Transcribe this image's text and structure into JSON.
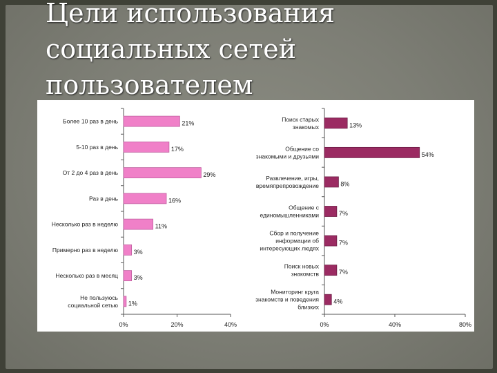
{
  "slide": {
    "title_lines": [
      "Цели использования",
      "социальных сетей",
      "пользователем"
    ]
  },
  "colors": {
    "left_bar": "#f080c8",
    "left_bar_stroke": "#c060a0",
    "right_bar": "#9b2b62",
    "right_bar_stroke": "#6e1e46",
    "axis": "#555555",
    "text": "#222222"
  },
  "chart_data": [
    {
      "type": "bar",
      "orientation": "horizontal",
      "categories": [
        "Более 10 раз в день",
        "5-10 раз в день",
        "От 2 до 4 раз в день",
        "Раз в день",
        "Несколько раз в неделю",
        "Примерно раз в неделю",
        "Несколько раз в месяц",
        "Не пользуюсь социальной сетью"
      ],
      "category_lines": [
        [
          "Более 10 раз в день"
        ],
        [
          "5-10 раз в день"
        ],
        [
          "От 2 до 4 раз в день"
        ],
        [
          "Раз в день"
        ],
        [
          "Несколько раз в неделю"
        ],
        [
          "Примерно раз в неделю"
        ],
        [
          "Несколько раз в месяц"
        ],
        [
          "Не пользуюсь",
          "социальной сетью"
        ]
      ],
      "values": [
        21,
        17,
        29,
        16,
        11,
        3,
        3,
        1
      ],
      "value_labels": [
        "21%",
        "17%",
        "29%",
        "16%",
        "11%",
        "3%",
        "3%",
        "1%"
      ],
      "xlim": [
        0,
        40
      ],
      "xticks": [
        0,
        20,
        40
      ],
      "xtick_labels": [
        "0%",
        "20%",
        "40%"
      ],
      "grid": false,
      "color": "#f080c8"
    },
    {
      "type": "bar",
      "orientation": "horizontal",
      "categories": [
        "Поиск старых знакомых",
        "Общение со знакомыми и друзьями",
        "Развлечение, игры, времяпрепровождение",
        "Общение с единомышленниками",
        "Сбор и получение информации об интересующих людях",
        "Поиск новых знакомств",
        "Мониторинг круга знакомств и поведения близких"
      ],
      "category_lines": [
        [
          "Поиск старых",
          "знакомых"
        ],
        [
          "Общение со",
          "знакомыми и друзьями"
        ],
        [
          "Развлечение, игры,",
          "времяпрепровождение"
        ],
        [
          "Общение с",
          "единомышленниками"
        ],
        [
          "Сбор и получение",
          "информации об",
          "интересующих людях"
        ],
        [
          "Поиск новых",
          "знакомств"
        ],
        [
          "Мониторинг круга",
          "знакомств и поведения",
          "близких"
        ]
      ],
      "values": [
        13,
        54,
        8,
        7,
        7,
        7,
        4
      ],
      "value_labels": [
        "13%",
        "54%",
        "8%",
        "7%",
        "7%",
        "7%",
        "4%"
      ],
      "xlim": [
        0,
        80
      ],
      "xticks": [
        0,
        40,
        80
      ],
      "xtick_labels": [
        "0%",
        "40%",
        "80%"
      ],
      "grid": false,
      "color": "#9b2b62"
    }
  ]
}
